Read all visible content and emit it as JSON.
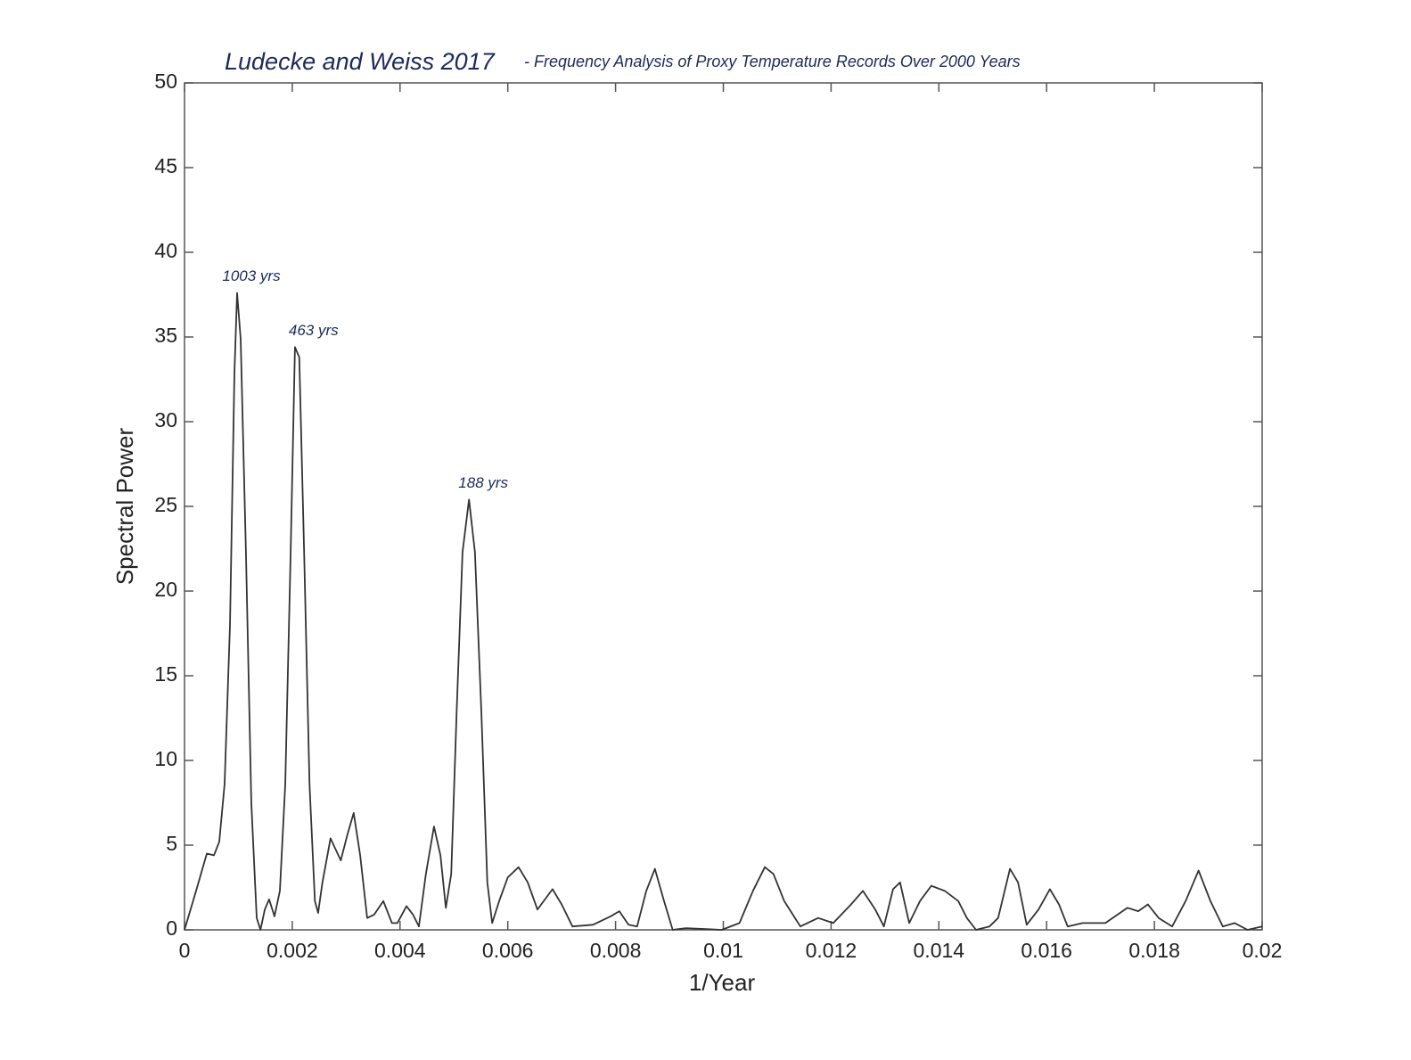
{
  "chart_data": {
    "type": "line",
    "title": "Ludecke and Weiss 2017",
    "subtitle": "- Frequency Analysis of Proxy Temperature Records Over 2000 Years",
    "x_label": "1/Year",
    "y_label": "Spectral Power",
    "xlim": [
      0,
      0.02
    ],
    "ylim": [
      0,
      50
    ],
    "xticks": [
      0,
      0.002,
      0.004,
      0.006,
      0.008,
      0.01,
      0.012,
      0.014,
      0.016,
      0.018,
      0.02
    ],
    "yticks": [
      0,
      5,
      10,
      15,
      20,
      25,
      30,
      35,
      40,
      45,
      50
    ],
    "grid": false,
    "annotations": [
      {
        "text": "1003 yrs",
        "x": 0.000976,
        "y": 37.6
      },
      {
        "text": "463 yrs",
        "x": 0.00213,
        "y": 34.4
      },
      {
        "text": "188 yrs",
        "x": 0.00528,
        "y": 25.4
      }
    ],
    "series": [
      {
        "color": "#333333",
        "x": [
          0,
          0.000215,
          0.000414,
          0.000546,
          0.000645,
          0.000744,
          0.000844,
          0.000926,
          0.000976,
          0.001042,
          0.00114,
          0.00124,
          0.00134,
          0.00141,
          0.00149,
          0.00157,
          0.00167,
          0.00177,
          0.00187,
          0.00197,
          0.00205,
          0.00213,
          0.00222,
          0.00232,
          0.00242,
          0.00248,
          0.00256,
          0.00271,
          0.0029,
          0.00303,
          0.00314,
          0.00326,
          0.00339,
          0.00352,
          0.00369,
          0.00385,
          0.00395,
          0.00412,
          0.00424,
          0.00435,
          0.00448,
          0.00463,
          0.00475,
          0.00485,
          0.00495,
          0.00505,
          0.00516,
          0.00528,
          0.00539,
          0.00551,
          0.00562,
          0.00571,
          0.00584,
          0.006,
          0.0062,
          0.00637,
          0.00655,
          0.00683,
          0.007,
          0.0072,
          0.00758,
          0.00791,
          0.00807,
          0.00824,
          0.0084,
          0.00857,
          0.00873,
          0.0089,
          0.00906,
          0.00931,
          0.00964,
          0.00997,
          0.0103,
          0.01055,
          0.01077,
          0.01093,
          0.01113,
          0.01143,
          0.01176,
          0.01204,
          0.01237,
          0.01259,
          0.01282,
          0.01298,
          0.01315,
          0.01328,
          0.01345,
          0.01365,
          0.01386,
          0.01411,
          0.01436,
          0.01452,
          0.01469,
          0.01494,
          0.0151,
          0.01532,
          0.01547,
          0.01563,
          0.01585,
          0.01606,
          0.01623,
          0.01639,
          0.01667,
          0.01709,
          0.0175,
          0.0177,
          0.01788,
          0.01808,
          0.01833,
          0.01858,
          0.01882,
          0.01904,
          0.01927,
          0.01949,
          0.01973,
          0.02
        ],
        "values": [
          0,
          2.3,
          4.5,
          4.4,
          5.2,
          8.6,
          18,
          32.8,
          37.6,
          34.9,
          22.3,
          7.5,
          0.7,
          0,
          1.2,
          1.8,
          0.8,
          2.3,
          8.6,
          22.3,
          34.4,
          33.8,
          22.3,
          8.6,
          1.7,
          1.0,
          2.8,
          5.4,
          4.1,
          5.7,
          6.9,
          4.4,
          0.7,
          0.9,
          1.7,
          0.4,
          0.4,
          1.4,
          0.9,
          0.2,
          3.3,
          6.1,
          4.4,
          1.3,
          3.3,
          12.8,
          22.3,
          25.4,
          22.3,
          12.8,
          2.8,
          0.4,
          1.7,
          3.1,
          3.7,
          2.8,
          1.2,
          2.4,
          1.5,
          0.2,
          0.3,
          0.8,
          1.1,
          0.3,
          0.2,
          2.3,
          3.6,
          1.7,
          0,
          0.1,
          0.05,
          0,
          0.4,
          2.3,
          3.7,
          3.3,
          1.7,
          0.2,
          0.7,
          0.4,
          1.5,
          2.3,
          1.2,
          0.2,
          2.4,
          2.8,
          0.4,
          1.7,
          2.6,
          2.3,
          1.7,
          0.7,
          0,
          0.2,
          0.7,
          3.6,
          2.8,
          0.3,
          1.2,
          2.4,
          1.5,
          0.2,
          0.4,
          0.4,
          1.3,
          1.1,
          1.5,
          0.7,
          0.2,
          1.7,
          3.5,
          1.7,
          0.2,
          0.4,
          0,
          0.2
        ]
      }
    ]
  }
}
